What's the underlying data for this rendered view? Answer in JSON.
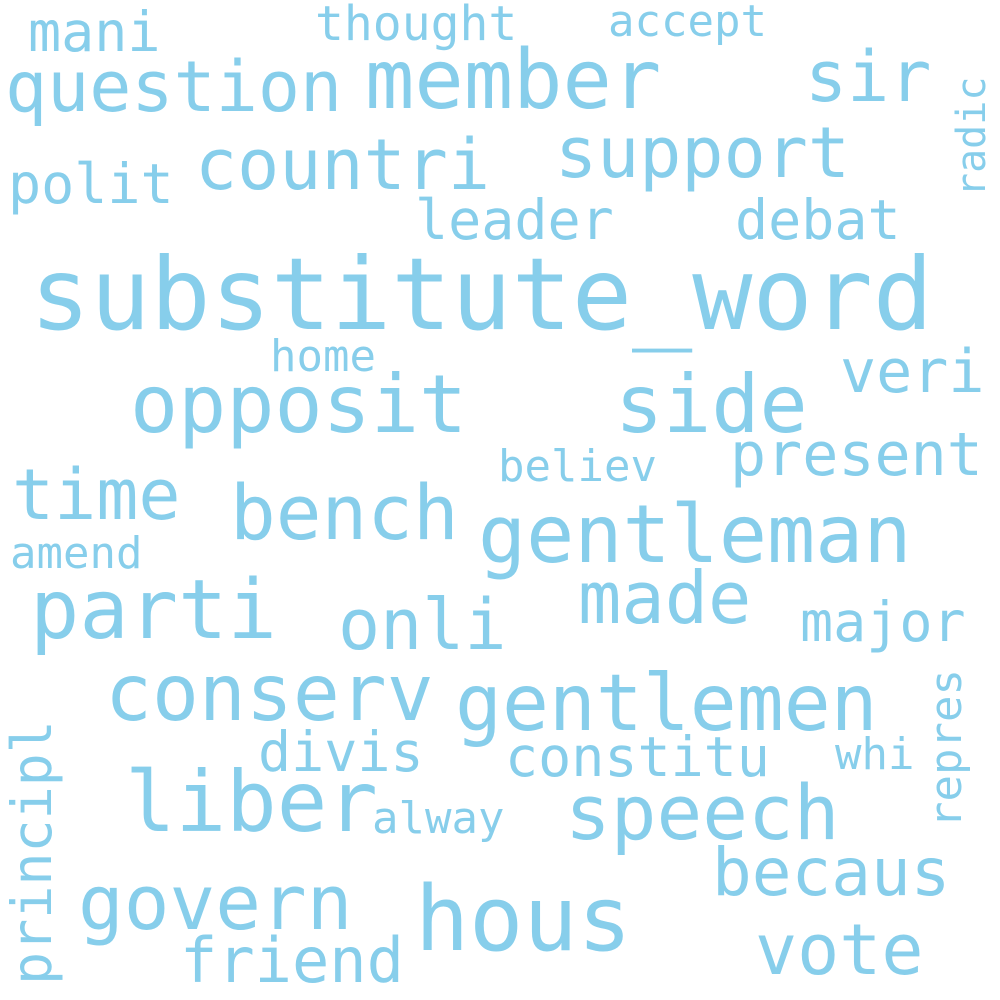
{
  "style": {
    "text_color": "#87ceeb",
    "background": "#ffffff"
  },
  "words": [
    "substitute_word",
    "member",
    "question",
    "countri",
    "support",
    "sir",
    "polit",
    "leader",
    "debat",
    "radic",
    "thought",
    "accept",
    "mani",
    "home",
    "opposit",
    "side",
    "veri",
    "present",
    "believ",
    "time",
    "bench",
    "gentleman",
    "amend",
    "parti",
    "made",
    "onli",
    "major",
    "conserv",
    "gentlemen",
    "divis",
    "constitu",
    "whi",
    "repres",
    "principl",
    "liber",
    "alway",
    "speech",
    "becaus",
    "govern",
    "hous",
    "vote",
    "friend"
  ]
}
